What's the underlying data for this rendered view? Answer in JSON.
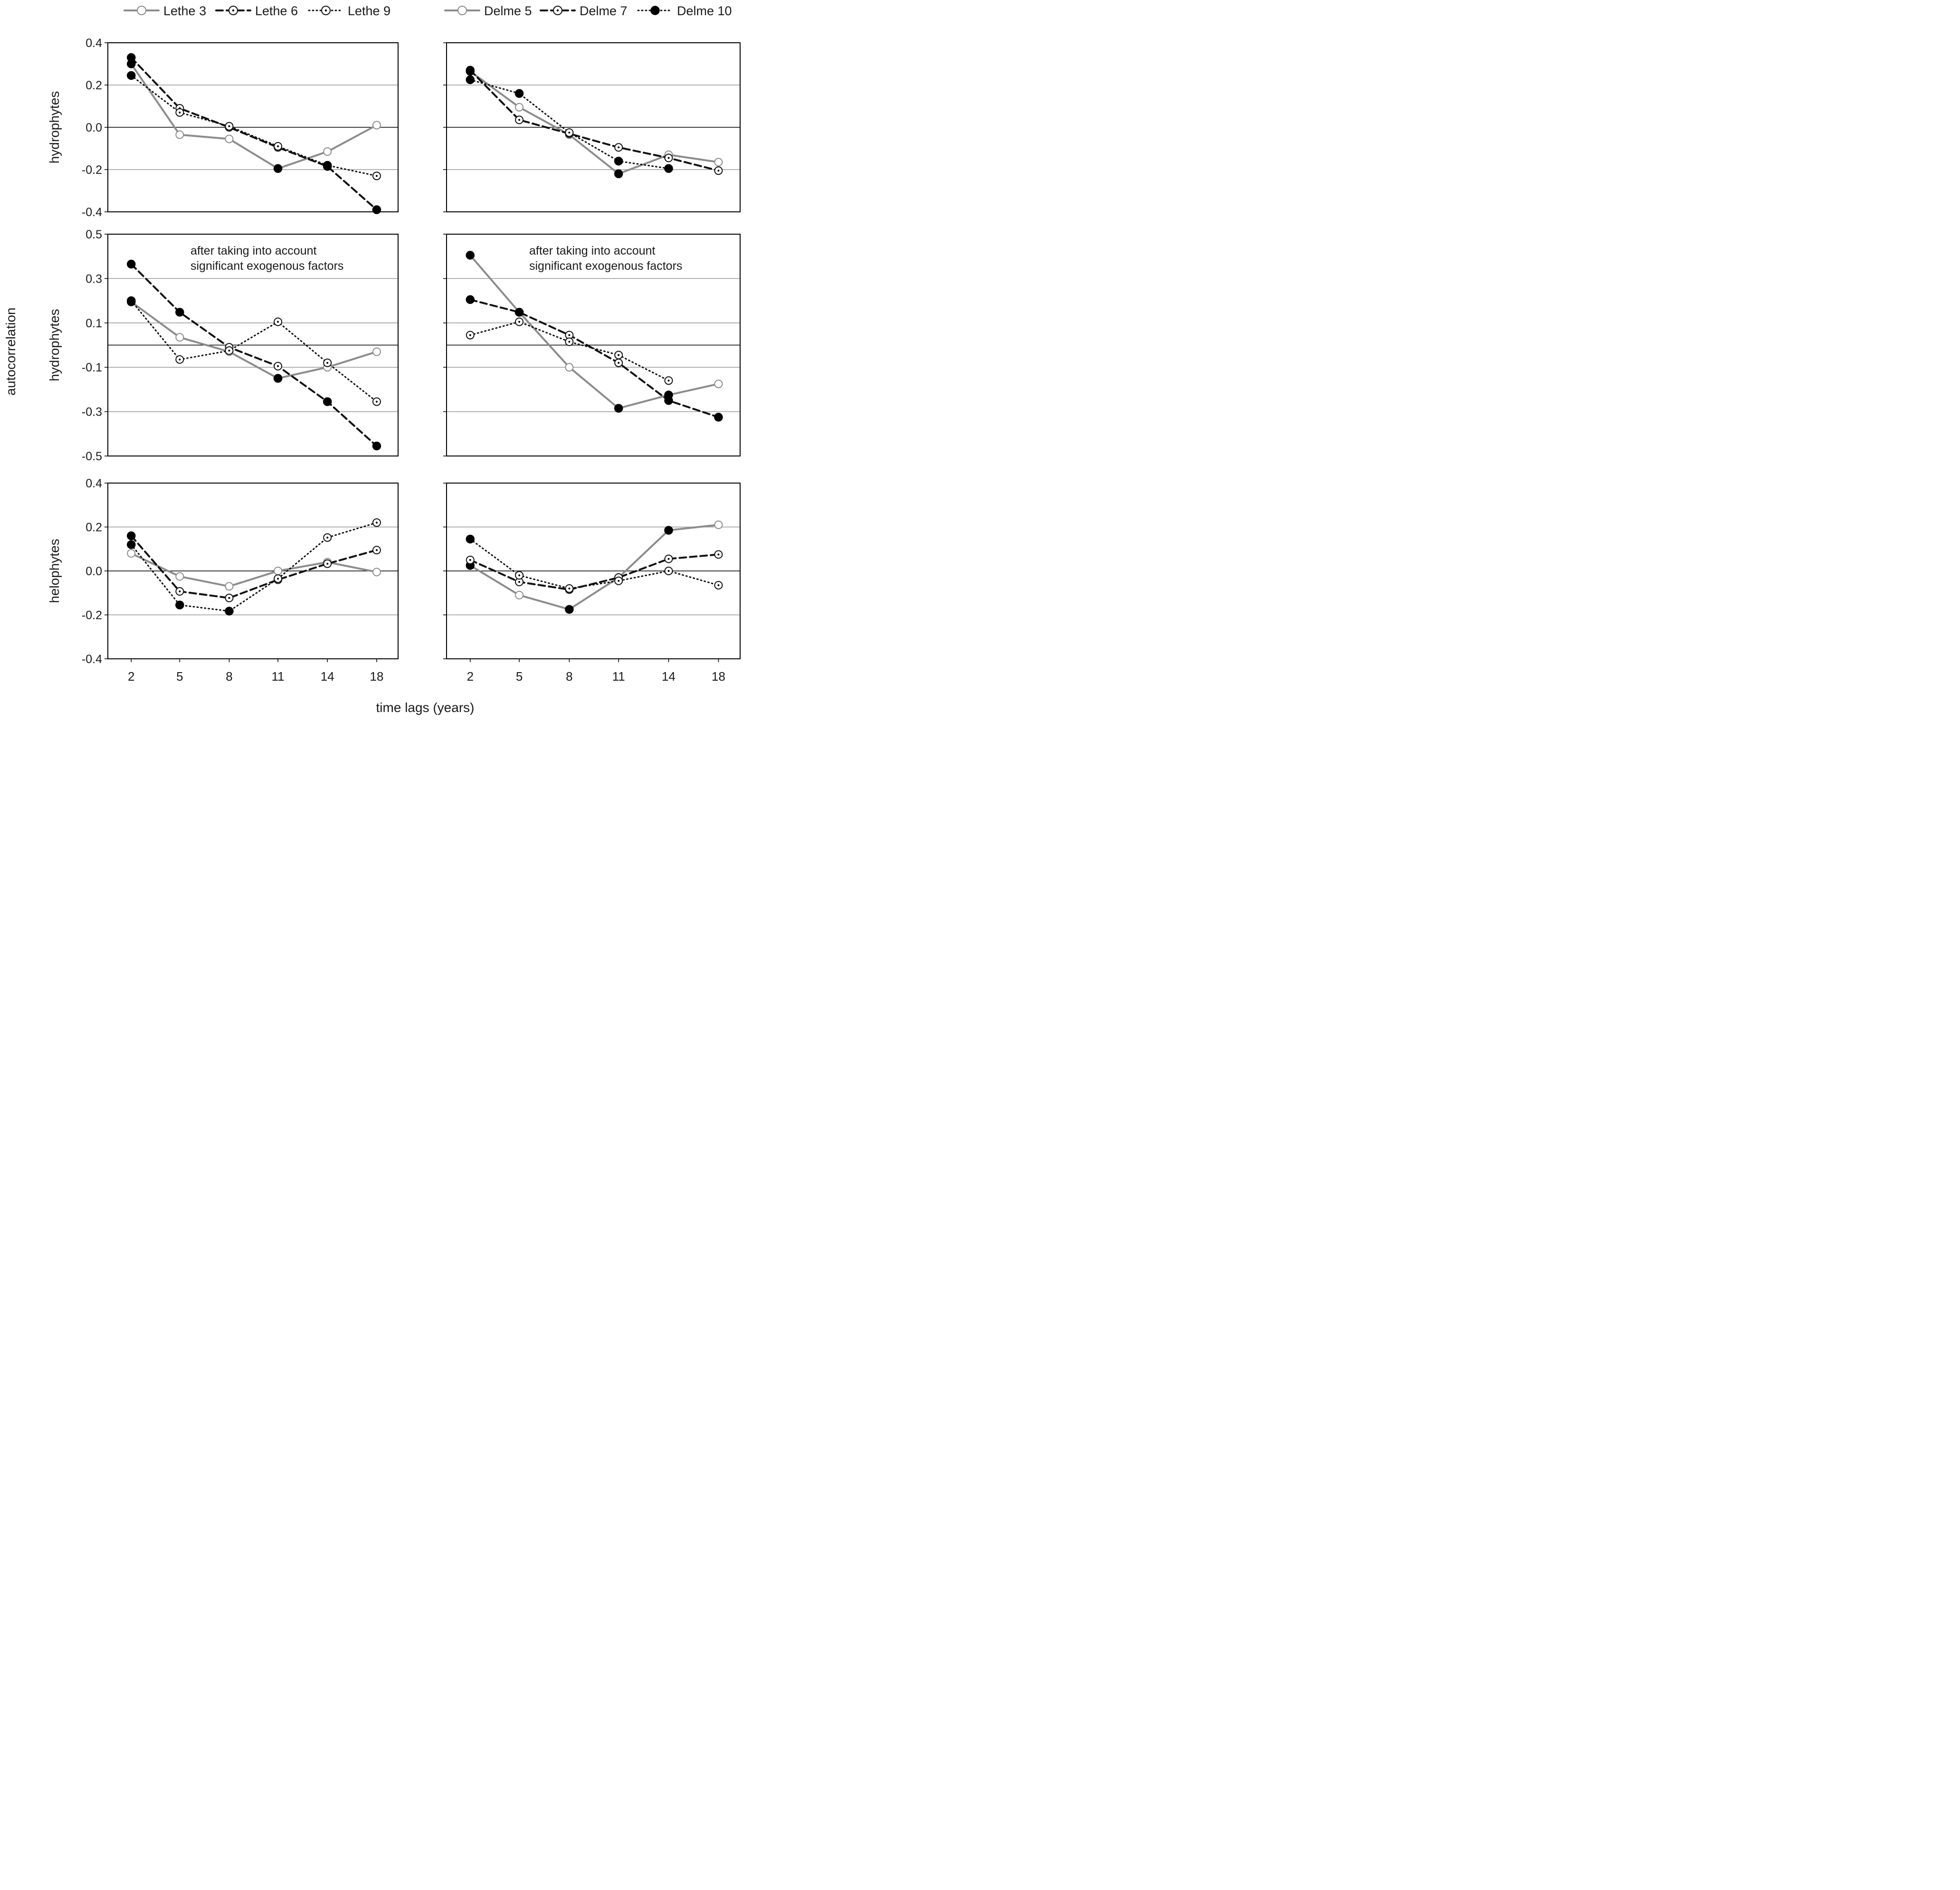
{
  "figure": {
    "y_axis_label": "autocorrelation",
    "x_axis_label": "time lags (years)"
  },
  "legends": {
    "left": [
      {
        "label": "Lethe 3",
        "style": "gray-solid",
        "marker": "open"
      },
      {
        "label": "Lethe 6",
        "style": "black-dashed",
        "marker": "dotted"
      },
      {
        "label": "Lethe 9",
        "style": "black-dotted",
        "marker": "dotted"
      }
    ],
    "right": [
      {
        "label": "Delme 5",
        "style": "gray-solid",
        "marker": "open"
      },
      {
        "label": "Delme 7",
        "style": "black-dashed",
        "marker": "dotted"
      },
      {
        "label": "Delme 10",
        "style": "black-dotted",
        "marker": "filled"
      }
    ]
  },
  "colors": {
    "gray_line": "#8c8c8c",
    "black_line": "#111111",
    "gridline": "#999999",
    "zero_line": "#000000"
  },
  "chart_data": [
    {
      "type": "line",
      "id": "top-left",
      "row_label": "hydrophytes",
      "annotation": [],
      "categories": [
        "2",
        "5",
        "8",
        "11",
        "14",
        "18"
      ],
      "yticks": [
        "0.4",
        "0.2",
        "0.0",
        "-0.2",
        "-0.4"
      ],
      "ylim": [
        -0.4,
        0.4
      ],
      "gridlines": [
        0.2,
        -0.2
      ],
      "series": [
        {
          "name": "Lethe 3",
          "style": "gray-solid",
          "values": [
            0.3,
            -0.035,
            -0.055,
            -0.195,
            -0.115,
            0.01
          ],
          "markers": [
            "f",
            "o",
            "o",
            "f",
            "o",
            "o"
          ]
        },
        {
          "name": "Lethe 6",
          "style": "black-dashed",
          "values": [
            0.33,
            0.09,
            0.0,
            -0.095,
            -0.185,
            -0.39
          ],
          "markers": [
            "f",
            "o",
            "o",
            "o",
            "f",
            "f"
          ]
        },
        {
          "name": "Lethe 9",
          "style": "black-dotted",
          "values": [
            0.245,
            0.07,
            0.005,
            -0.09,
            -0.18,
            -0.23
          ],
          "markers": [
            "f",
            "o",
            "o",
            "o",
            "f",
            "o"
          ]
        }
      ]
    },
    {
      "type": "line",
      "id": "top-right",
      "row_label": "",
      "annotation": [],
      "categories": [
        "2",
        "5",
        "8",
        "11",
        "14",
        "18"
      ],
      "yticks": [],
      "ylim": [
        -0.4,
        0.4
      ],
      "gridlines": [
        0.2,
        -0.2
      ],
      "series": [
        {
          "name": "Delme 5",
          "style": "gray-solid",
          "values": [
            0.265,
            0.095,
            -0.035,
            -0.22,
            -0.13,
            -0.165
          ],
          "markers": [
            "f",
            "o",
            "o",
            "f",
            "o",
            "o"
          ]
        },
        {
          "name": "Delme 7",
          "style": "black-dashed",
          "values": [
            0.27,
            0.035,
            -0.03,
            -0.095,
            -0.145,
            -0.205
          ],
          "markers": [
            "f",
            "o",
            "o",
            "o",
            "o",
            "o"
          ]
        },
        {
          "name": "Delme 10",
          "style": "black-dotted",
          "values": [
            0.225,
            0.16,
            -0.025,
            -0.16,
            -0.195,
            null
          ],
          "markers": [
            "f",
            "f",
            "o",
            "f",
            "f",
            "o"
          ]
        }
      ]
    },
    {
      "type": "line",
      "id": "middle-left",
      "row_label": "hydrophytes",
      "annotation": [
        "after taking into account",
        "significant exogenous factors"
      ],
      "categories": [
        "2",
        "5",
        "8",
        "11",
        "14",
        "18"
      ],
      "yticks": [
        "0.5",
        "0.3",
        "0.1",
        "-0.1",
        "-0.3",
        "-0.5"
      ],
      "ylim": [
        -0.5,
        0.5
      ],
      "gridlines": [
        0.3,
        0.1,
        -0.1,
        -0.3
      ],
      "series": [
        {
          "name": "Lethe 3",
          "style": "gray-solid",
          "values": [
            0.195,
            0.035,
            -0.03,
            -0.15,
            -0.1,
            -0.03
          ],
          "markers": [
            "f",
            "o",
            "o",
            "f",
            "o",
            "o"
          ]
        },
        {
          "name": "Lethe 6",
          "style": "black-dashed",
          "values": [
            0.365,
            0.148,
            -0.01,
            -0.095,
            -0.255,
            -0.455
          ],
          "markers": [
            "f",
            "f",
            "o",
            "o",
            "f",
            "f"
          ]
        },
        {
          "name": "Lethe 9",
          "style": "black-dotted",
          "values": [
            0.2,
            -0.065,
            -0.025,
            0.105,
            -0.08,
            -0.255
          ],
          "markers": [
            "f",
            "o",
            "o",
            "o",
            "o",
            "o"
          ]
        }
      ]
    },
    {
      "type": "line",
      "id": "middle-right",
      "row_label": "",
      "annotation": [
        "after taking into account",
        "significant exogenous factors"
      ],
      "categories": [
        "2",
        "5",
        "8",
        "11",
        "14",
        "18"
      ],
      "yticks": [],
      "ylim": [
        -0.5,
        0.5
      ],
      "gridlines": [
        0.3,
        0.1,
        -0.1,
        -0.3
      ],
      "series": [
        {
          "name": "Delme 5",
          "style": "gray-solid",
          "values": [
            0.405,
            0.148,
            -0.1,
            -0.285,
            -0.225,
            -0.175
          ],
          "markers": [
            "f",
            "f",
            "o",
            "f",
            "f",
            "o"
          ]
        },
        {
          "name": "Delme 7",
          "style": "black-dashed",
          "values": [
            0.205,
            0.148,
            0.045,
            -0.08,
            -0.25,
            -0.325
          ],
          "markers": [
            "f",
            "f",
            "o",
            "o",
            "f",
            "f"
          ]
        },
        {
          "name": "Delme 10",
          "style": "black-dotted",
          "values": [
            0.045,
            0.105,
            0.015,
            -0.045,
            -0.16,
            null
          ],
          "markers": [
            "o",
            "o",
            "o",
            "o",
            "o",
            "o"
          ]
        }
      ]
    },
    {
      "type": "line",
      "id": "bottom-left",
      "row_label": "helophytes",
      "annotation": [],
      "categories": [
        "2",
        "5",
        "8",
        "11",
        "14",
        "18"
      ],
      "yticks": [
        "0.4",
        "0.2",
        "0.0",
        "-0.2",
        "-0.4"
      ],
      "ylim": [
        -0.4,
        0.4
      ],
      "gridlines": [
        0.2,
        -0.2
      ],
      "series": [
        {
          "name": "Lethe 3",
          "style": "gray-solid",
          "values": [
            0.08,
            -0.025,
            -0.07,
            0.0,
            0.04,
            -0.005
          ],
          "markers": [
            "o",
            "o",
            "o",
            "o",
            "o",
            "o"
          ]
        },
        {
          "name": "Lethe 6",
          "style": "black-dashed",
          "values": [
            0.16,
            -0.093,
            -0.123,
            -0.04,
            0.033,
            0.095
          ],
          "markers": [
            "f",
            "o",
            "o",
            "o",
            "o",
            "o"
          ]
        },
        {
          "name": "Lethe 9",
          "style": "black-dotted",
          "values": [
            0.12,
            -0.155,
            -0.183,
            -0.035,
            0.152,
            0.22
          ],
          "markers": [
            "f",
            "f",
            "f",
            "o",
            "o",
            "o"
          ]
        }
      ]
    },
    {
      "type": "line",
      "id": "bottom-right",
      "row_label": "",
      "annotation": [],
      "categories": [
        "2",
        "5",
        "8",
        "11",
        "14",
        "18"
      ],
      "yticks": [],
      "ylim": [
        -0.4,
        0.4
      ],
      "gridlines": [
        0.2,
        -0.2
      ],
      "series": [
        {
          "name": "Delme 5",
          "style": "gray-solid",
          "values": [
            0.025,
            -0.11,
            -0.175,
            -0.03,
            0.185,
            0.21
          ],
          "markers": [
            "f",
            "o",
            "f",
            "o",
            "f",
            "o"
          ]
        },
        {
          "name": "Delme 7",
          "style": "black-dashed",
          "values": [
            0.05,
            -0.05,
            -0.085,
            -0.03,
            0.055,
            0.075
          ],
          "markers": [
            "o",
            "o",
            "o",
            "o",
            "o",
            "o"
          ]
        },
        {
          "name": "Delme 10",
          "style": "black-dotted",
          "values": [
            0.145,
            -0.02,
            -0.08,
            -0.045,
            0.0,
            -0.065
          ],
          "markers": [
            "f",
            "o",
            "o",
            "o",
            "o",
            "o"
          ]
        }
      ]
    }
  ]
}
